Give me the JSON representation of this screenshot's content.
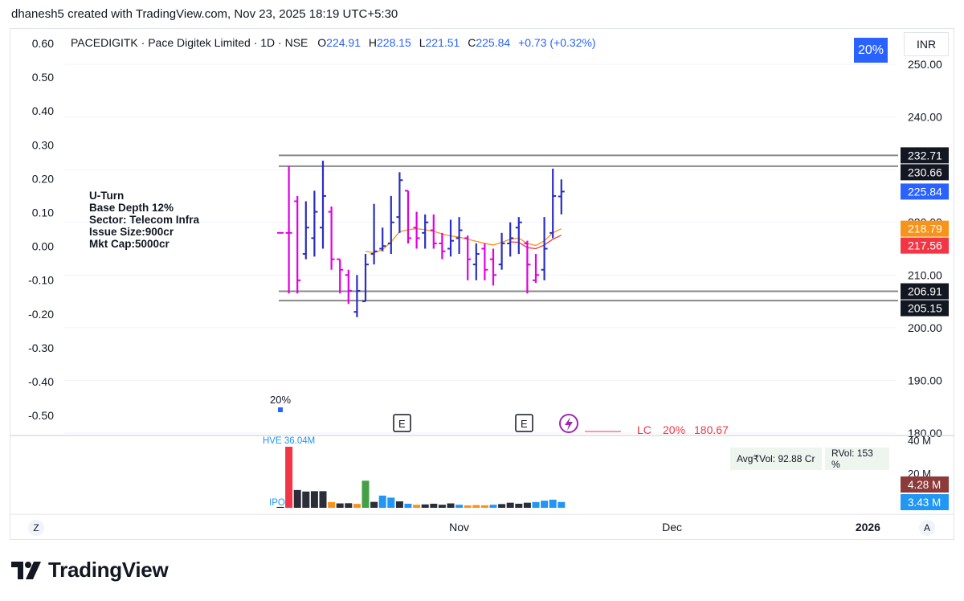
{
  "header": {
    "credit": "dhanesh5 created with TradingView.com, Nov 23, 2025 18:19 UTC+5:30"
  },
  "legend": {
    "symbol": "PACEDIGITK · Pace Digitek Limited · 1D · NSE",
    "open_label": "O",
    "open": "224.91",
    "high_label": "H",
    "high": "228.15",
    "low_label": "L",
    "low": "221.51",
    "close_label": "C",
    "close": "225.84",
    "change": "+0.73 (+0.32%)"
  },
  "badge": {
    "pct": "20%",
    "currency": "INR"
  },
  "notes": [
    "U-Turn",
    "Base Depth 12%",
    "Sector: Telecom Infra",
    "Issue Size:900cr",
    "Mkt Cap:5000cr"
  ],
  "volume_panel": {
    "hve_label": "HVE 36.04M",
    "ipo_label": "IPO",
    "avg_vol": "Avg₹Vol: 92.88 Cr",
    "rvol": "RVol: 153 %",
    "axis_ticks": [
      "40 M",
      "20 M"
    ],
    "vol_badge_1": "4.28 M",
    "vol_badge_2": "3.43 M"
  },
  "markers": {
    "ipo_pct": "20%",
    "earnings": [
      "E",
      "E"
    ],
    "lc_label": "LC",
    "lc_pct": "20%",
    "lc_price": "180.67"
  },
  "footer": {
    "brand": "TradingView",
    "left_btn": "Z",
    "right_btn": "A"
  },
  "colors": {
    "up": "#2a2ec0",
    "down": "#e000e0",
    "accent": "#2962ff"
  },
  "chart_data": {
    "type": "ohlc",
    "symbol": "PACEDIGITK",
    "left_axis": {
      "ticks": [
        "0.60",
        "0.50",
        "0.40",
        "0.30",
        "0.20",
        "0.10",
        "0.00",
        "-0.10",
        "-0.20",
        "-0.30",
        "-0.40",
        "-0.50"
      ]
    },
    "right_axis": {
      "ticks": [
        "250.00",
        "240.00",
        "230.00",
        "220.00",
        "210.00",
        "200.00",
        "190.00",
        "180.00"
      ],
      "range": [
        178,
        254
      ]
    },
    "x_labels": [
      {
        "label": "Nov",
        "bar": 21
      },
      {
        "label": "Dec",
        "bar": 46
      },
      {
        "label": "2026",
        "bar": 69
      }
    ],
    "horizontal_levels": [
      232.71,
      230.66,
      206.91,
      205.15
    ],
    "price_labels": [
      {
        "value": "232.71",
        "price": 232.71,
        "bg": "#131722"
      },
      {
        "value": "230.66",
        "price": 230.66,
        "bg": "#131722"
      },
      {
        "value": "225.84",
        "price": 225.84,
        "bg": "#2962ff"
      },
      {
        "value": "218.79",
        "price": 218.79,
        "bg": "#f7931a"
      },
      {
        "value": "217.56",
        "price": 217.56,
        "bg": "#f23645"
      },
      {
        "value": "206.91",
        "price": 206.91,
        "bg": "#131722"
      },
      {
        "value": "205.15",
        "price": 205.15,
        "bg": "#131722"
      }
    ],
    "bars": [
      {
        "o": 218.0,
        "h": 218.0,
        "l": 218.0,
        "c": 218.0,
        "d": "down"
      },
      {
        "o": 218.0,
        "h": 230.7,
        "l": 206.5,
        "c": 218.0,
        "d": "down"
      },
      {
        "o": 224.0,
        "h": 225.0,
        "l": 206.5,
        "c": 209.0,
        "d": "down"
      },
      {
        "o": 214.0,
        "h": 224.0,
        "l": 213.0,
        "c": 219.0,
        "d": "up"
      },
      {
        "o": 217.0,
        "h": 226.0,
        "l": 213.5,
        "c": 222.0,
        "d": "up"
      },
      {
        "o": 219.0,
        "h": 231.7,
        "l": 215.0,
        "c": 225.0,
        "d": "up"
      },
      {
        "o": 222.0,
        "h": 223.0,
        "l": 211.0,
        "c": 213.0,
        "d": "down"
      },
      {
        "o": 213.0,
        "h": 213.0,
        "l": 206.5,
        "c": 211.0,
        "d": "down"
      },
      {
        "o": 210.0,
        "h": 211.0,
        "l": 204.5,
        "c": 207.0,
        "d": "down"
      },
      {
        "o": 203.0,
        "h": 210.0,
        "l": 202.0,
        "c": 207.0,
        "d": "up"
      },
      {
        "o": 205.0,
        "h": 214.0,
        "l": 205.0,
        "c": 212.0,
        "d": "up"
      },
      {
        "o": 214.0,
        "h": 223.5,
        "l": 212.0,
        "c": 214.5,
        "d": "up"
      },
      {
        "o": 215.0,
        "h": 219.0,
        "l": 214.5,
        "c": 215.5,
        "d": "up"
      },
      {
        "o": 216.0,
        "h": 225.0,
        "l": 214.0,
        "c": 220.0,
        "d": "up"
      },
      {
        "o": 221.0,
        "h": 229.5,
        "l": 218.0,
        "c": 228.0,
        "d": "up"
      },
      {
        "o": 226.0,
        "h": 226.0,
        "l": 216.0,
        "c": 217.0,
        "d": "down"
      },
      {
        "o": 219.0,
        "h": 222.0,
        "l": 215.0,
        "c": 217.0,
        "d": "down"
      },
      {
        "o": 218.0,
        "h": 221.5,
        "l": 215.0,
        "c": 220.0,
        "d": "up"
      },
      {
        "o": 218.5,
        "h": 221.5,
        "l": 215.0,
        "c": 216.0,
        "d": "down"
      },
      {
        "o": 216.0,
        "h": 218.0,
        "l": 213.0,
        "c": 214.5,
        "d": "down"
      },
      {
        "o": 215.0,
        "h": 220.5,
        "l": 213.5,
        "c": 216.5,
        "d": "up"
      },
      {
        "o": 217.0,
        "h": 221.0,
        "l": 214.0,
        "c": 218.5,
        "d": "up"
      },
      {
        "o": 217.0,
        "h": 217.5,
        "l": 209.0,
        "c": 213.0,
        "d": "down"
      },
      {
        "o": 212.0,
        "h": 216.0,
        "l": 209.0,
        "c": 214.0,
        "d": "up"
      },
      {
        "o": 215.0,
        "h": 216.0,
        "l": 209.0,
        "c": 211.0,
        "d": "down"
      },
      {
        "o": 213.0,
        "h": 215.0,
        "l": 208.0,
        "c": 210.0,
        "d": "down"
      },
      {
        "o": 212.0,
        "h": 218.0,
        "l": 211.0,
        "c": 216.0,
        "d": "up"
      },
      {
        "o": 216.0,
        "h": 220.0,
        "l": 213.5,
        "c": 217.0,
        "d": "up"
      },
      {
        "o": 219.0,
        "h": 221.0,
        "l": 214.0,
        "c": 220.0,
        "d": "up"
      },
      {
        "o": 216.0,
        "h": 216.5,
        "l": 206.5,
        "c": 212.0,
        "d": "down"
      },
      {
        "o": 209.0,
        "h": 214.0,
        "l": 208.5,
        "c": 210.0,
        "d": "down"
      },
      {
        "o": 211.0,
        "h": 221.0,
        "l": 209.0,
        "c": 215.0,
        "d": "up"
      },
      {
        "o": 218.0,
        "h": 230.2,
        "l": 217.0,
        "c": 225.0,
        "d": "up"
      },
      {
        "o": 224.91,
        "h": 228.15,
        "l": 221.51,
        "c": 225.84,
        "d": "up"
      }
    ],
    "ma_orange": [
      null,
      null,
      null,
      null,
      null,
      null,
      null,
      null,
      null,
      null,
      214.5,
      214.2,
      214.8,
      216.3,
      218.2,
      218.6,
      218.8,
      218.6,
      218.3,
      217.8,
      217.4,
      217.2,
      216.8,
      216.4,
      216.0,
      215.7,
      216.2,
      216.8,
      217.0,
      216.0,
      215.6,
      216.5,
      218.0,
      218.79
    ],
    "ma_red": [
      null,
      null,
      null,
      null,
      null,
      null,
      null,
      null,
      null,
      null,
      null,
      null,
      null,
      null,
      null,
      null,
      null,
      null,
      null,
      null,
      null,
      null,
      null,
      null,
      null,
      null,
      null,
      216.3,
      216.2,
      215.2,
      215.0,
      215.7,
      216.8,
      217.56
    ],
    "volume": {
      "unit": "M",
      "values": [
        0.5,
        36.04,
        10.5,
        9.6,
        9.8,
        9.8,
        3.4,
        2.6,
        2.7,
        2.3,
        16.0,
        3.5,
        7.2,
        6.0,
        3.8,
        2.4,
        1.8,
        2.0,
        2.4,
        1.8,
        2.6,
        1.8,
        1.4,
        1.6,
        1.5,
        1.8,
        2.2,
        3.0,
        2.4,
        3.0,
        3.4,
        4.2,
        4.8,
        3.43
      ],
      "colors": [
        "#131722",
        "#f23645",
        "#2a2e39",
        "#2a2e39",
        "#2a2e39",
        "#2a2e39",
        "#f7931a",
        "#2a2e39",
        "#2a2e39",
        "#f7931a",
        "#43a047",
        "#2a2e39",
        "#2196f3",
        "#2196f3",
        "#2a2e39",
        "#2196f3",
        "#f7931a",
        "#2a2e39",
        "#2a2e39",
        "#2a2e39",
        "#2a2e39",
        "#2196f3",
        "#f7931a",
        "#f7931a",
        "#f7931a",
        "#2196f3",
        "#2a2e39",
        "#2a2e39",
        "#2a2e39",
        "#2a2e39",
        "#2196f3",
        "#2196f3",
        "#2196f3",
        "#2196f3"
      ]
    }
  }
}
